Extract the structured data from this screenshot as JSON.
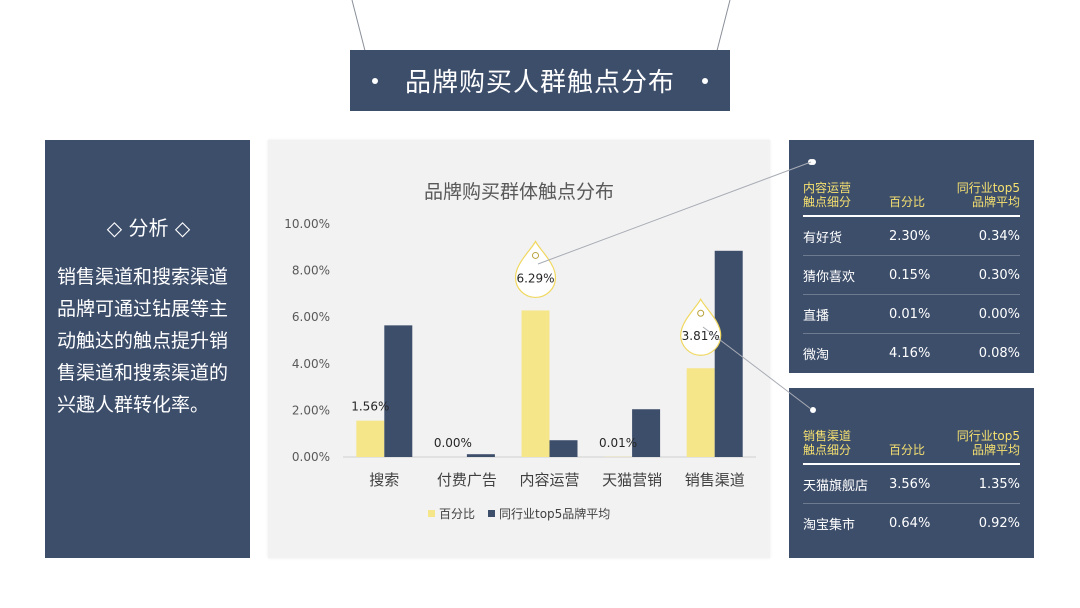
{
  "banner": {
    "title": "品牌购买人群触点分布"
  },
  "analysis": {
    "heading": "◇ 分析 ◇",
    "body": "销售渠道和搜索渠道品牌可通过钻展等主动触达的触点提升销售渠道和搜索渠道的兴趣人群转化率。"
  },
  "chart_data": {
    "type": "bar",
    "title": "品牌购买群体触点分布",
    "categories": [
      "搜索",
      "付费广告",
      "内容运营",
      "天猫营销",
      "销售渠道"
    ],
    "series": [
      {
        "name": "百分比",
        "values": [
          1.56,
          0.0,
          6.29,
          0.01,
          3.81
        ],
        "color": "#f5e68a"
      },
      {
        "name": "同行业top5品牌平均",
        "values": [
          5.65,
          0.12,
          0.72,
          2.05,
          8.85
        ],
        "color": "#3d4e6b"
      }
    ],
    "data_labels": [
      "1.56%",
      "0.00%",
      "6.29%",
      "0.01%",
      "3.81%"
    ],
    "y_ticks": [
      "0.00%",
      "2.00%",
      "4.00%",
      "6.00%",
      "8.00%",
      "10.00%"
    ],
    "ylim": [
      0,
      10
    ],
    "grid": false,
    "legend": "bottom"
  },
  "content_table": {
    "headers": [
      "内容运营\n触点细分",
      "百分比",
      "同行业top5\n品牌平均"
    ],
    "rows": [
      [
        "有好货",
        "2.30%",
        "0.34%"
      ],
      [
        "猜你喜欢",
        "0.15%",
        "0.30%"
      ],
      [
        "直播",
        "0.01%",
        "0.00%"
      ],
      [
        "微淘",
        "4.16%",
        "0.08%"
      ]
    ]
  },
  "sales_table": {
    "headers": [
      "销售渠道\n触点细分",
      "百分比",
      "同行业top5\n品牌平均"
    ],
    "rows": [
      [
        "天猫旗舰店",
        "3.56%",
        "1.35%"
      ],
      [
        "淘宝集市",
        "0.64%",
        "0.92%"
      ]
    ]
  },
  "colors": {
    "navy": "#3d4e6b",
    "yellow": "#f5e68a",
    "accent_text": "#f5e06f"
  }
}
